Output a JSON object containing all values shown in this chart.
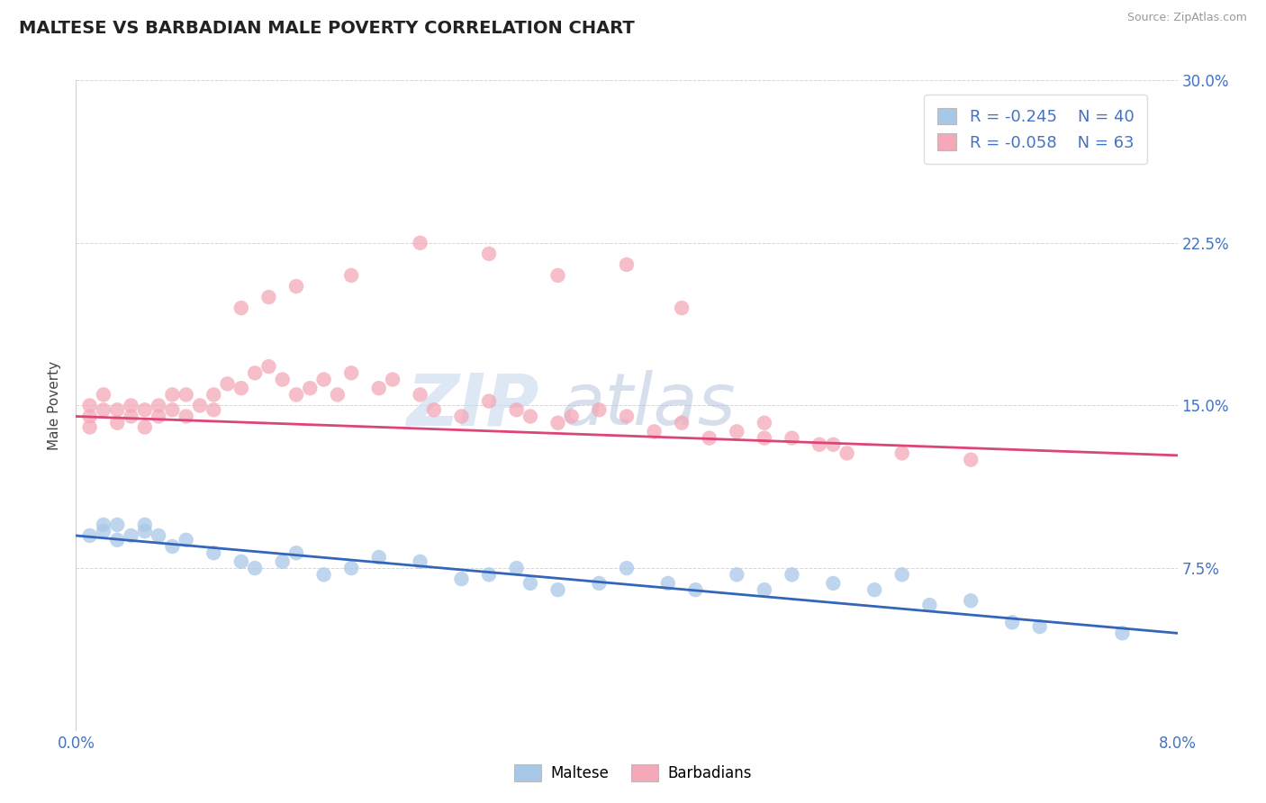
{
  "title": "MALTESE VS BARBADIAN MALE POVERTY CORRELATION CHART",
  "source": "Source: ZipAtlas.com",
  "ylabel": "Male Poverty",
  "ytick_labels": [
    "",
    "7.5%",
    "15.0%",
    "22.5%",
    "30.0%"
  ],
  "ytick_values": [
    0.0,
    0.075,
    0.15,
    0.225,
    0.3
  ],
  "xlim": [
    0.0,
    0.08
  ],
  "ylim": [
    0.0,
    0.3
  ],
  "blue_color": "#a8c8e8",
  "pink_color": "#f4a8b8",
  "blue_line_color": "#3366bb",
  "pink_line_color": "#dd4477",
  "blue_R": -0.245,
  "blue_N": 40,
  "pink_R": -0.058,
  "pink_N": 63,
  "watermark_zip": "ZIP",
  "watermark_atlas": "atlas",
  "legend_label_blue": "Maltese",
  "legend_label_pink": "Barbadians",
  "blue_points_x": [
    0.001,
    0.002,
    0.002,
    0.003,
    0.003,
    0.004,
    0.005,
    0.005,
    0.006,
    0.007,
    0.008,
    0.01,
    0.012,
    0.013,
    0.015,
    0.016,
    0.018,
    0.02,
    0.022,
    0.025,
    0.028,
    0.03,
    0.032,
    0.033,
    0.035,
    0.038,
    0.04,
    0.043,
    0.045,
    0.048,
    0.05,
    0.052,
    0.055,
    0.058,
    0.06,
    0.062,
    0.065,
    0.068,
    0.07,
    0.076
  ],
  "blue_points_y": [
    0.09,
    0.092,
    0.095,
    0.088,
    0.095,
    0.09,
    0.092,
    0.095,
    0.09,
    0.085,
    0.088,
    0.082,
    0.078,
    0.075,
    0.078,
    0.082,
    0.072,
    0.075,
    0.08,
    0.078,
    0.07,
    0.072,
    0.075,
    0.068,
    0.065,
    0.068,
    0.075,
    0.068,
    0.065,
    0.072,
    0.065,
    0.072,
    0.068,
    0.065,
    0.072,
    0.058,
    0.06,
    0.05,
    0.048,
    0.045
  ],
  "pink_points_x": [
    0.001,
    0.001,
    0.001,
    0.002,
    0.002,
    0.003,
    0.003,
    0.004,
    0.004,
    0.005,
    0.005,
    0.006,
    0.006,
    0.007,
    0.007,
    0.008,
    0.008,
    0.009,
    0.01,
    0.01,
    0.011,
    0.012,
    0.013,
    0.014,
    0.015,
    0.016,
    0.017,
    0.018,
    0.019,
    0.02,
    0.022,
    0.023,
    0.025,
    0.026,
    0.028,
    0.03,
    0.032,
    0.033,
    0.035,
    0.036,
    0.038,
    0.04,
    0.042,
    0.044,
    0.046,
    0.048,
    0.05,
    0.052,
    0.054,
    0.056,
    0.012,
    0.014,
    0.016,
    0.02,
    0.025,
    0.03,
    0.035,
    0.04,
    0.044,
    0.05,
    0.055,
    0.06,
    0.065
  ],
  "pink_points_y": [
    0.145,
    0.14,
    0.15,
    0.148,
    0.155,
    0.142,
    0.148,
    0.145,
    0.15,
    0.14,
    0.148,
    0.145,
    0.15,
    0.155,
    0.148,
    0.145,
    0.155,
    0.15,
    0.148,
    0.155,
    0.16,
    0.158,
    0.165,
    0.168,
    0.162,
    0.155,
    0.158,
    0.162,
    0.155,
    0.165,
    0.158,
    0.162,
    0.155,
    0.148,
    0.145,
    0.152,
    0.148,
    0.145,
    0.142,
    0.145,
    0.148,
    0.145,
    0.138,
    0.142,
    0.135,
    0.138,
    0.142,
    0.135,
    0.132,
    0.128,
    0.195,
    0.2,
    0.205,
    0.21,
    0.225,
    0.22,
    0.21,
    0.215,
    0.195,
    0.135,
    0.132,
    0.128,
    0.125
  ]
}
